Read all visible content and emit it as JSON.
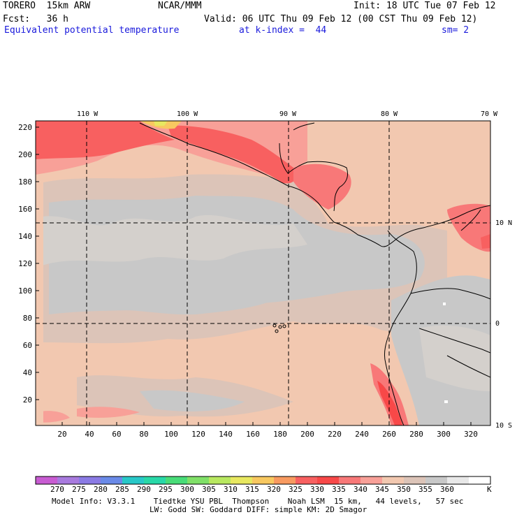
{
  "header": {
    "model_line": "TORERO  15km ARW",
    "org": "NCAR/MMM",
    "init": "Init: 18 UTC Tue 07 Feb 12",
    "fcst": "Fcst:   36 h",
    "valid": "Valid: 06 UTC Thu 09 Feb 12 (00 CST Thu 09 Feb 12)",
    "field": "Equivalent potential temperature",
    "level": "at k-index =  44",
    "smoothing": "sm= 2"
  },
  "map": {
    "top_lon_labels": [
      "110 W",
      "100 W",
      "90 W",
      "80 W",
      "70 W"
    ],
    "right_lat_labels": [
      "10 N",
      "0",
      "10 S"
    ],
    "y_ticks": [
      "220",
      "200",
      "180",
      "160",
      "140",
      "120",
      "100",
      "80",
      "60",
      "40",
      "20"
    ],
    "x_ticks": [
      "20",
      "40",
      "60",
      "80",
      "100",
      "120",
      "140",
      "160",
      "180",
      "200",
      "220",
      "240",
      "260",
      "280",
      "300",
      "320"
    ]
  },
  "colorbar": {
    "unit": "K",
    "labels": [
      "270",
      "275",
      "280",
      "285",
      "290",
      "295",
      "300",
      "305",
      "310",
      "315",
      "320",
      "325",
      "330",
      "335",
      "340",
      "345",
      "350",
      "355",
      "360"
    ],
    "colors": [
      "#c85cd2",
      "#a87ade",
      "#8a7ae4",
      "#6a8ae8",
      "#28c8c8",
      "#28d8a8",
      "#48dc78",
      "#80e068",
      "#b8e860",
      "#e8e860",
      "#f8c860",
      "#f89a60",
      "#f86060",
      "#f84848",
      "#f87878",
      "#f8a098",
      "#f2c8b0",
      "#dcc4b8",
      "#c8c8c8",
      "#e8e8e8",
      "#ffffff"
    ]
  },
  "footer": {
    "line1": "Model Info: V3.3.1    Tiedtke YSU PBL  Thompson    Noah LSM  15 km,   44 levels,   57 sec",
    "line2": "LW: Godd SW: Goddard DIFF: simple KM: 2D Smagor"
  }
}
